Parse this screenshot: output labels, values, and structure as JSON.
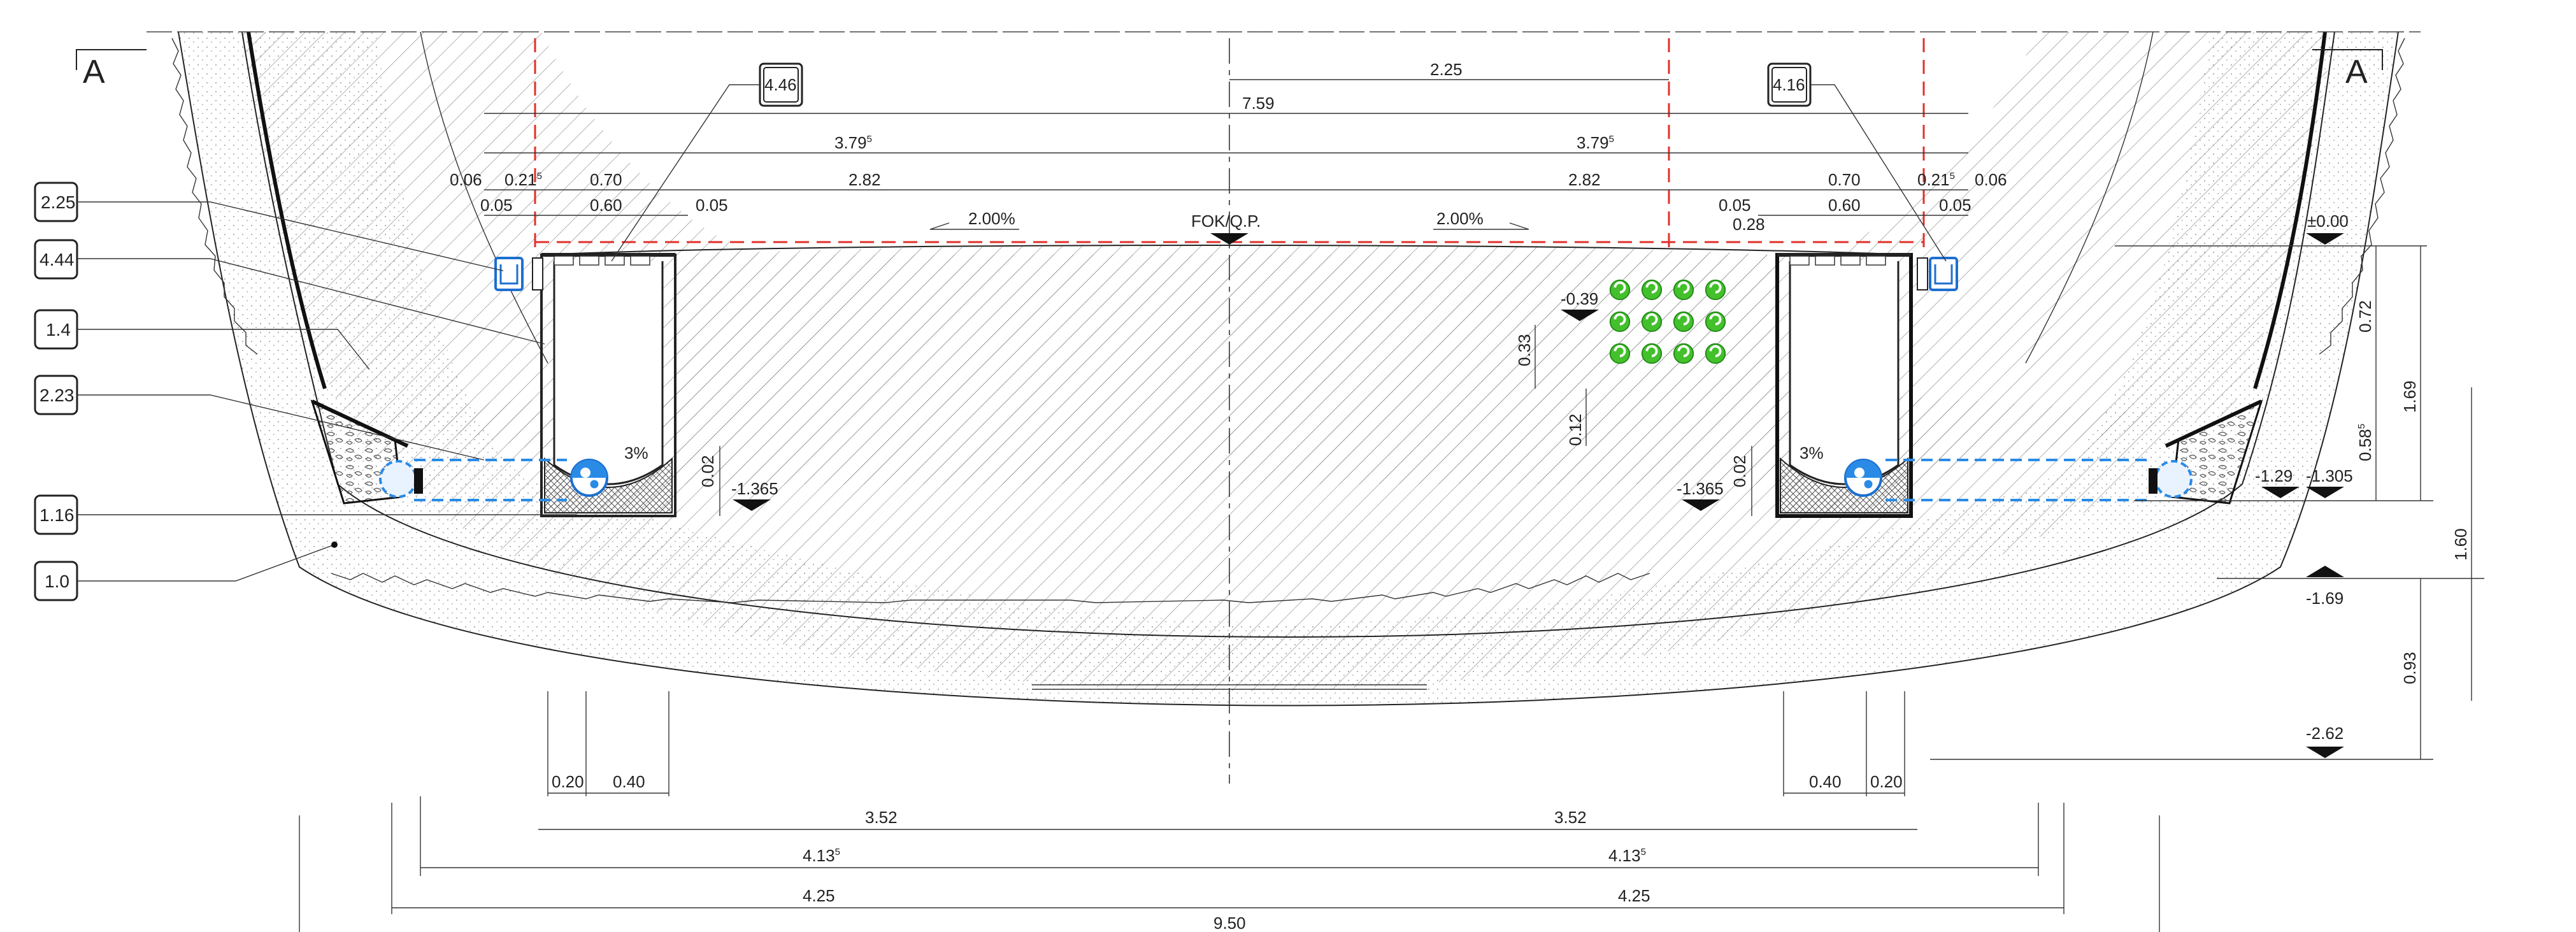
{
  "section": {
    "label_left": "A",
    "label_right": "A"
  },
  "tags_left": [
    "2.25",
    "4.44",
    "1.4",
    "2.23",
    "1.16",
    "1.0"
  ],
  "tags_top": {
    "left": "4.46",
    "right": "4.16"
  },
  "dims_top": {
    "d225": "2.25",
    "d759": "7.59",
    "d379": "3.79",
    "d379_sup": "5",
    "d006": "0.06",
    "d0215": "0.21",
    "d0215_sup": "5",
    "d070": "0.70",
    "d282": "2.82",
    "d005": "0.05",
    "d060": "0.60",
    "d028": "0.28"
  },
  "slopes": {
    "deck": "2.00%",
    "drain": "3%"
  },
  "axis_label": "FOK/Q.P.",
  "levels": {
    "zero": "±0.00",
    "m039": "-0.39",
    "m1365": "-1.365",
    "m129": "-1.29",
    "m1305": "-1.305",
    "m169": "-1.69",
    "m262": "-2.62"
  },
  "vertical_dims": {
    "v033": "0.33",
    "v012": "0.12",
    "v002": "0.02",
    "v072": "0.72",
    "v058": "0.58",
    "v058_sup": "5",
    "v169": "1.69",
    "v160": "1.60",
    "v093": "0.93"
  },
  "dims_bottom": {
    "d020": "0.20",
    "d040": "0.40",
    "d352": "3.52",
    "d4135": "4.13",
    "d4135_sup": "5",
    "d425": "4.25",
    "d950": "9.50"
  },
  "colors": {
    "ink": "#222222",
    "red": "#e0302a",
    "blue": "#2a8be6",
    "green": "#3fc02a",
    "concrete_dots": "#9a9a9a"
  },
  "icons": [
    "cable-conduit-icon",
    "drain-pipe-icon",
    "elevation-marker-icon"
  ]
}
